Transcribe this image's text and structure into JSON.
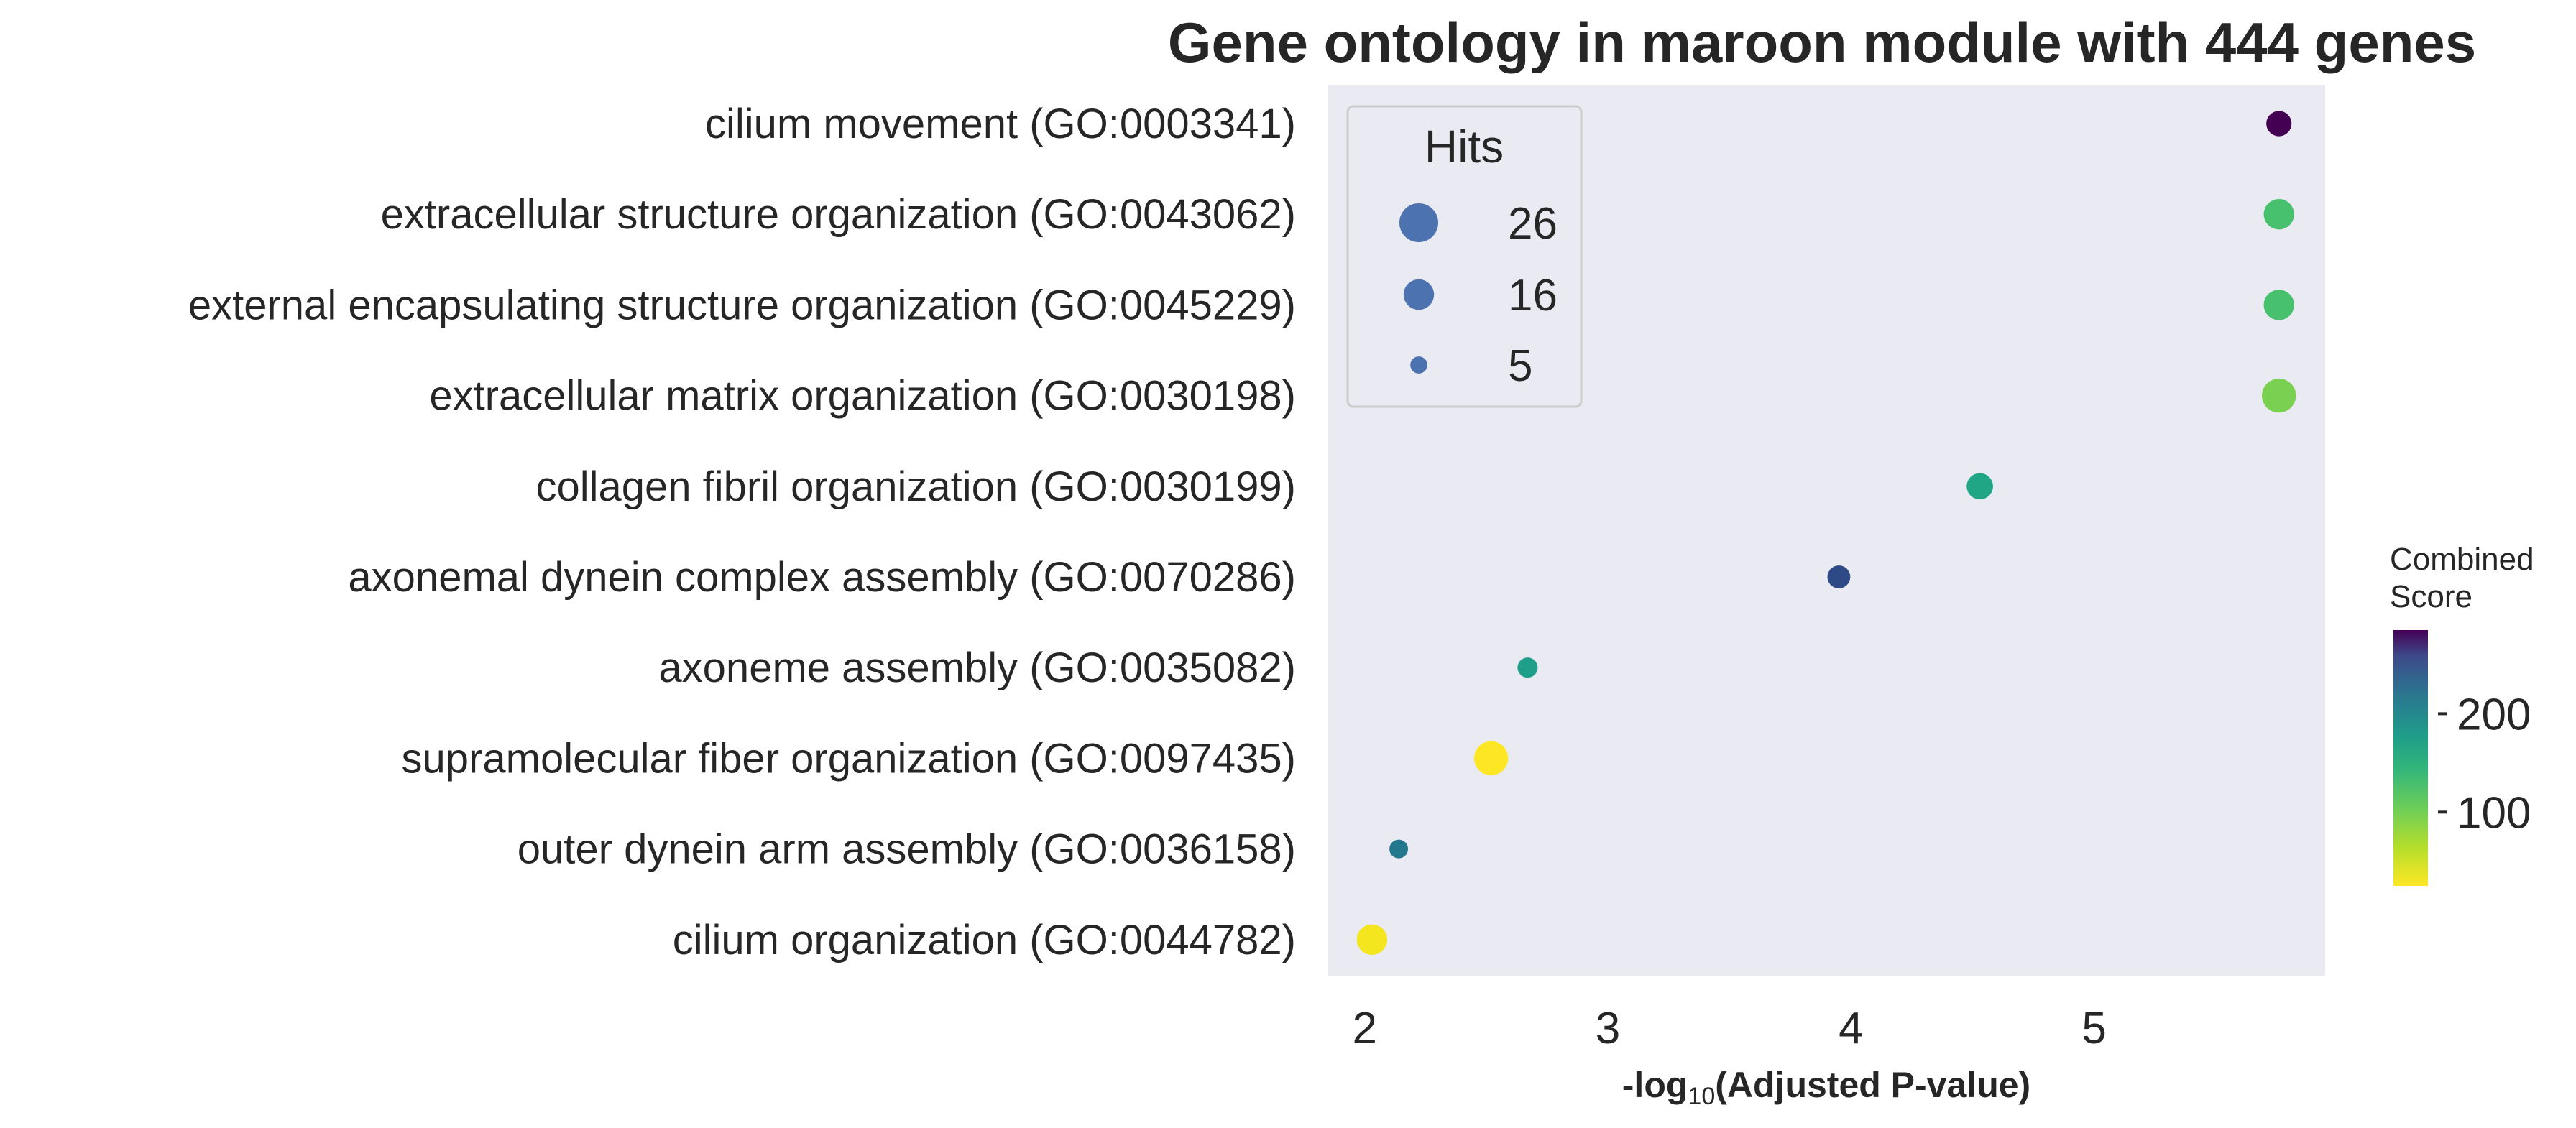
{
  "chart_data": {
    "type": "scatter",
    "title": "Gene ontology in maroon module with 444 genes",
    "xlabel": {
      "prefix": "-log",
      "subscript": "10",
      "suffix": "(Adjusted P-value)"
    },
    "ylabel": "",
    "xlim": [
      1.85,
      5.95
    ],
    "x_ticks": [
      2,
      3,
      4,
      5
    ],
    "grid": false,
    "background": "#eaeaf2",
    "categories": [
      "cilium movement (GO:0003341)",
      "extracellular structure organization (GO:0043062)",
      "external encapsulating structure organization (GO:0045229)",
      "extracellular matrix organization (GO:0030198)",
      "collagen fibril organization (GO:0030199)",
      "axonemal dynein complex assembly (GO:0070286)",
      "axoneme assembly (GO:0035082)",
      "supramolecular fiber organization (GO:0097435)",
      "outer dynein arm assembly (GO:0036158)",
      "cilium organization (GO:0044782)"
    ],
    "points": [
      {
        "x": 5.76,
        "hits": 11,
        "combined_score": 275,
        "color": "#440154"
      },
      {
        "x": 5.76,
        "hits": 16,
        "combined_score": 90,
        "color": "#47c16e"
      },
      {
        "x": 5.76,
        "hits": 16,
        "combined_score": 90,
        "color": "#47c16e"
      },
      {
        "x": 5.76,
        "hits": 20,
        "combined_score": 75,
        "color": "#7ad151"
      },
      {
        "x": 4.53,
        "hits": 12,
        "combined_score": 130,
        "color": "#21a685"
      },
      {
        "x": 3.95,
        "hits": 9,
        "combined_score": 215,
        "color": "#2d4a87"
      },
      {
        "x": 2.67,
        "hits": 7,
        "combined_score": 140,
        "color": "#1f9e89"
      },
      {
        "x": 2.52,
        "hits": 20,
        "combined_score": 35,
        "color": "#fde725"
      },
      {
        "x": 2.14,
        "hits": 6,
        "combined_score": 170,
        "color": "#23788e"
      },
      {
        "x": 2.03,
        "hits": 16,
        "combined_score": 35,
        "color": "#f3e51e"
      }
    ],
    "size_legend": {
      "title": "Hits",
      "placement": "top-left",
      "color": "#4c72b0",
      "entries": [
        26,
        16,
        5
      ]
    },
    "colorbar": {
      "title_line1": "Combined",
      "title_line2": "Score",
      "colormap": "viridis (reversed)",
      "range": [
        25,
        285
      ],
      "ticks": [
        100,
        200
      ]
    }
  }
}
